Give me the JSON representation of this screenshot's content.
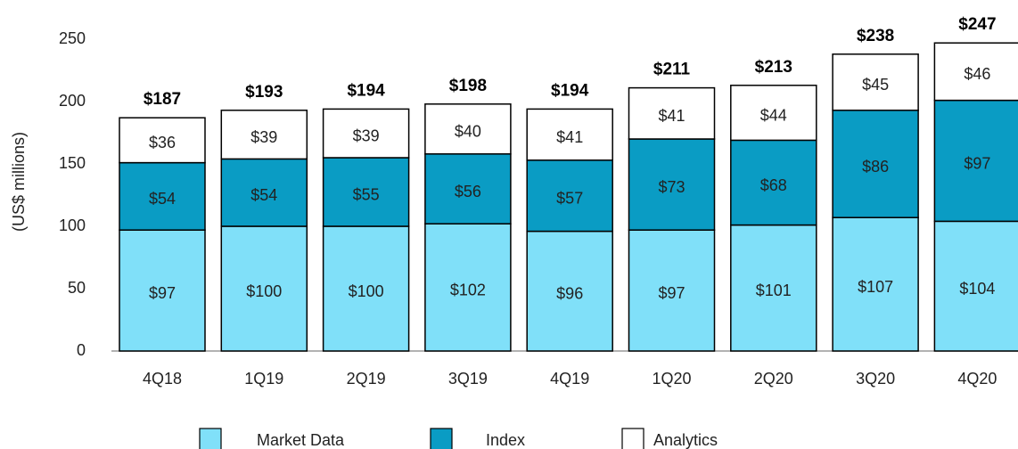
{
  "chart_data": {
    "type": "stacked_bar",
    "y_label": "(US$ millions)",
    "categories": [
      "4Q18",
      "1Q19",
      "2Q19",
      "3Q19",
      "4Q19",
      "1Q20",
      "2Q20",
      "3Q20",
      "4Q20"
    ],
    "series": [
      {
        "name": "Market Data",
        "color": "#80e0f9",
        "values": [
          97,
          100,
          100,
          102,
          96,
          97,
          101,
          107,
          104
        ],
        "value_labels": [
          "$97",
          "$100",
          "$100",
          "$102",
          "$96",
          "$97",
          "$101",
          "$107",
          "$104"
        ]
      },
      {
        "name": "Index",
        "color": "#0a9cc4",
        "values": [
          54,
          54,
          55,
          56,
          57,
          73,
          68,
          86,
          97
        ],
        "value_labels": [
          "$54",
          "$54",
          "$55",
          "$56",
          "$57",
          "$73",
          "$68",
          "$86",
          "$97"
        ]
      },
      {
        "name": "Analytics",
        "color": "#ffffff",
        "values": [
          36,
          39,
          39,
          40,
          41,
          41,
          44,
          45,
          46
        ],
        "value_labels": [
          "$36",
          "$39",
          "$39",
          "$40",
          "$41",
          "$41",
          "$44",
          "$45",
          "$46"
        ]
      }
    ],
    "totals": [
      187,
      193,
      194,
      198,
      194,
      211,
      213,
      238,
      247
    ],
    "total_labels": [
      "$187",
      "$193",
      "$194",
      "$198",
      "$194",
      "$211",
      "$213",
      "$238",
      "$247"
    ],
    "ylim": [
      0,
      250
    ],
    "yticks": [
      0,
      50,
      100,
      150,
      200,
      250
    ],
    "grid": false
  }
}
